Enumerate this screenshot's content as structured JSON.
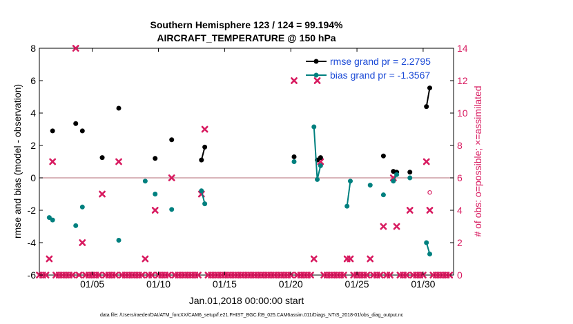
{
  "chart_data": {
    "type": "line",
    "title": "Southern Hemisphere 123 / 124 = 99.194%",
    "subtitle": "AIRCRAFT_TEMPERATURE @ 150 hPa",
    "xlabel": "Jan.01,2018 00:00:00 start",
    "ylabel": "rmse and bias (model - observation)",
    "y2label": "# of obs: o=possible; ×=assimilated",
    "xlim": [
      1,
      32.3
    ],
    "ylim": [
      -6,
      8
    ],
    "y2lim": [
      0,
      14
    ],
    "x_ticks": [
      {
        "value": 5,
        "label": "01/05"
      },
      {
        "value": 10,
        "label": "01/10"
      },
      {
        "value": 15,
        "label": "01/15"
      },
      {
        "value": 20,
        "label": "01/20"
      },
      {
        "value": 25,
        "label": "01/25"
      },
      {
        "value": 30,
        "label": "01/30"
      }
    ],
    "y_ticks": [
      {
        "value": -6,
        "label": "-6"
      },
      {
        "value": -4,
        "label": "-4"
      },
      {
        "value": -2,
        "label": "-2"
      },
      {
        "value": 0,
        "label": "0"
      },
      {
        "value": 2,
        "label": "2"
      },
      {
        "value": 4,
        "label": "4"
      },
      {
        "value": 6,
        "label": "6"
      },
      {
        "value": 8,
        "label": "8"
      }
    ],
    "y2_ticks": [
      {
        "value": 0,
        "label": "0"
      },
      {
        "value": 2,
        "label": "2"
      },
      {
        "value": 4,
        "label": "4"
      },
      {
        "value": 6,
        "label": "6"
      },
      {
        "value": 8,
        "label": "8"
      },
      {
        "value": 10,
        "label": "10"
      },
      {
        "value": 12,
        "label": "12"
      },
      {
        "value": 14,
        "label": "14"
      }
    ],
    "zero_line": 0,
    "grid": false,
    "legend_position": "top-right",
    "series": [
      {
        "name": "rmse grand pr = 2.2795",
        "color": "#000000",
        "marker": "filled-circle",
        "segments": [
          [
            [
              2.0,
              2.9
            ]
          ],
          [
            [
              3.75,
              3.35
            ]
          ],
          [
            [
              4.25,
              2.9
            ]
          ],
          [
            [
              5.75,
              1.25
            ]
          ],
          [
            [
              7.0,
              4.3
            ]
          ],
          [
            [
              9.75,
              1.2
            ]
          ],
          [
            [
              11.0,
              2.35
            ]
          ],
          [
            [
              13.25,
              1.1
            ],
            [
              13.5,
              1.9
            ]
          ],
          [
            [
              20.25,
              1.3
            ]
          ],
          [
            [
              22.0,
              1.1
            ],
            [
              22.25,
              1.25
            ]
          ],
          [
            [
              27.0,
              1.35
            ]
          ],
          [
            [
              27.75,
              0.4
            ],
            [
              28.0,
              0.35
            ]
          ],
          [
            [
              29.0,
              0.35
            ]
          ],
          [
            [
              30.25,
              4.4
            ],
            [
              30.5,
              5.55
            ]
          ]
        ]
      },
      {
        "name": "bias grand pr = -1.3567",
        "color": "#00807f",
        "marker": "filled-circle",
        "segments": [
          [
            [
              1.75,
              -2.45
            ],
            [
              2.0,
              -2.6
            ]
          ],
          [
            [
              3.75,
              -2.95
            ]
          ],
          [
            [
              4.25,
              -1.8
            ]
          ],
          [
            [
              7.0,
              -3.85
            ]
          ],
          [
            [
              9.0,
              -0.2
            ]
          ],
          [
            [
              9.75,
              -1.0
            ]
          ],
          [
            [
              11.0,
              -1.95
            ]
          ],
          [
            [
              13.25,
              -0.8
            ],
            [
              13.5,
              -1.6
            ]
          ],
          [
            [
              20.25,
              1.0
            ]
          ],
          [
            [
              21.75,
              3.15
            ],
            [
              22.0,
              -0.1
            ],
            [
              22.25,
              0.75
            ]
          ],
          [
            [
              24.25,
              -1.75
            ],
            [
              24.5,
              -0.2
            ]
          ],
          [
            [
              26.0,
              -0.45
            ]
          ],
          [
            [
              27.0,
              -1.05
            ]
          ],
          [
            [
              27.75,
              -0.2
            ],
            [
              28.0,
              0.2
            ]
          ],
          [
            [
              29.0,
              0.0
            ]
          ],
          [
            [
              30.25,
              -4.0
            ],
            [
              30.5,
              -4.7
            ]
          ]
        ]
      }
    ],
    "obs_counts": {
      "name": "# of obs",
      "color": "#d81b60",
      "axis": "right",
      "assimilated_marker": "cross",
      "possible_marker": "open-circle",
      "assimilated": [
        [
          1,
          0
        ],
        [
          1.25,
          0
        ],
        [
          1.5,
          0
        ],
        [
          1.75,
          1
        ],
        [
          2.0,
          7
        ],
        [
          2.25,
          0
        ],
        [
          2.5,
          0
        ],
        [
          2.75,
          0
        ],
        [
          3,
          0
        ],
        [
          3.25,
          0
        ],
        [
          3.5,
          0
        ],
        [
          3.75,
          14
        ],
        [
          4.0,
          0
        ],
        [
          4.25,
          2
        ],
        [
          4.5,
          0
        ],
        [
          4.75,
          0
        ],
        [
          5,
          0
        ],
        [
          5.25,
          0
        ],
        [
          5.5,
          0
        ],
        [
          5.75,
          5
        ],
        [
          6.0,
          0
        ],
        [
          6.25,
          0
        ],
        [
          6.5,
          0
        ],
        [
          6.75,
          0
        ],
        [
          7,
          7
        ],
        [
          7.25,
          0
        ],
        [
          7.5,
          0
        ],
        [
          7.75,
          0
        ],
        [
          8,
          0
        ],
        [
          8.25,
          0
        ],
        [
          8.5,
          0
        ],
        [
          8.75,
          0
        ],
        [
          9.0,
          1
        ],
        [
          9.25,
          0
        ],
        [
          9.5,
          0
        ],
        [
          9.75,
          4
        ],
        [
          10,
          0
        ],
        [
          10.25,
          0
        ],
        [
          10.5,
          0
        ],
        [
          10.75,
          0
        ],
        [
          11.0,
          6
        ],
        [
          11.25,
          0
        ],
        [
          11.5,
          0
        ],
        [
          11.75,
          0
        ],
        [
          12,
          0
        ],
        [
          12.25,
          0
        ],
        [
          12.5,
          0
        ],
        [
          12.75,
          0
        ],
        [
          13,
          0
        ],
        [
          13.25,
          5
        ],
        [
          13.5,
          9
        ],
        [
          13.75,
          0
        ],
        [
          14,
          0
        ],
        [
          14.25,
          0
        ],
        [
          14.5,
          0
        ],
        [
          14.75,
          0
        ],
        [
          15,
          0
        ],
        [
          15.25,
          0
        ],
        [
          15.5,
          0
        ],
        [
          15.75,
          0
        ],
        [
          16,
          0
        ],
        [
          16.25,
          0
        ],
        [
          16.5,
          0
        ],
        [
          16.75,
          0
        ],
        [
          17,
          0
        ],
        [
          17.25,
          0
        ],
        [
          17.5,
          0
        ],
        [
          17.75,
          0
        ],
        [
          18,
          0
        ],
        [
          18.25,
          0
        ],
        [
          18.5,
          0
        ],
        [
          18.75,
          0
        ],
        [
          19,
          0
        ],
        [
          19.25,
          0
        ],
        [
          19.5,
          0
        ],
        [
          19.75,
          0
        ],
        [
          20,
          0
        ],
        [
          20.25,
          12
        ],
        [
          20.5,
          0
        ],
        [
          20.75,
          0
        ],
        [
          21,
          0
        ],
        [
          21.25,
          0
        ],
        [
          21.5,
          0
        ],
        [
          21.75,
          1
        ],
        [
          22.0,
          12
        ],
        [
          22.25,
          7
        ],
        [
          22.5,
          0
        ],
        [
          22.75,
          0
        ],
        [
          23,
          0
        ],
        [
          23.25,
          0
        ],
        [
          23.5,
          0
        ],
        [
          23.75,
          0
        ],
        [
          24,
          0
        ],
        [
          24.25,
          1
        ],
        [
          24.5,
          1
        ],
        [
          24.75,
          0
        ],
        [
          25,
          0
        ],
        [
          25.25,
          0
        ],
        [
          25.5,
          0
        ],
        [
          25.75,
          0
        ],
        [
          26.0,
          1
        ],
        [
          26.25,
          0
        ],
        [
          26.5,
          0
        ],
        [
          26.75,
          0
        ],
        [
          27.0,
          3
        ],
        [
          27.25,
          0
        ],
        [
          27.5,
          0
        ],
        [
          27.75,
          6
        ],
        [
          28.0,
          3
        ],
        [
          28.25,
          0
        ],
        [
          28.5,
          0
        ],
        [
          28.75,
          0
        ],
        [
          29.0,
          4
        ],
        [
          29.25,
          0
        ],
        [
          29.5,
          0
        ],
        [
          29.75,
          0
        ],
        [
          30.0,
          0
        ],
        [
          30.25,
          7
        ],
        [
          30.5,
          4
        ],
        [
          30.75,
          0
        ],
        [
          31,
          0
        ],
        [
          31.25,
          0
        ],
        [
          31.5,
          0
        ],
        [
          31.75,
          0
        ],
        [
          32,
          0
        ]
      ],
      "possible_extra": [
        [
          30.5,
          5.1
        ]
      ]
    },
    "footer": "data file: /Users/raeder/DAI/ATM_forcXX/CAM6_setup/f.e21.FHIST_BGC.f09_025.CAM6assim.011/Diags_NTrS_2018-01/obs_diag_output.nc"
  }
}
